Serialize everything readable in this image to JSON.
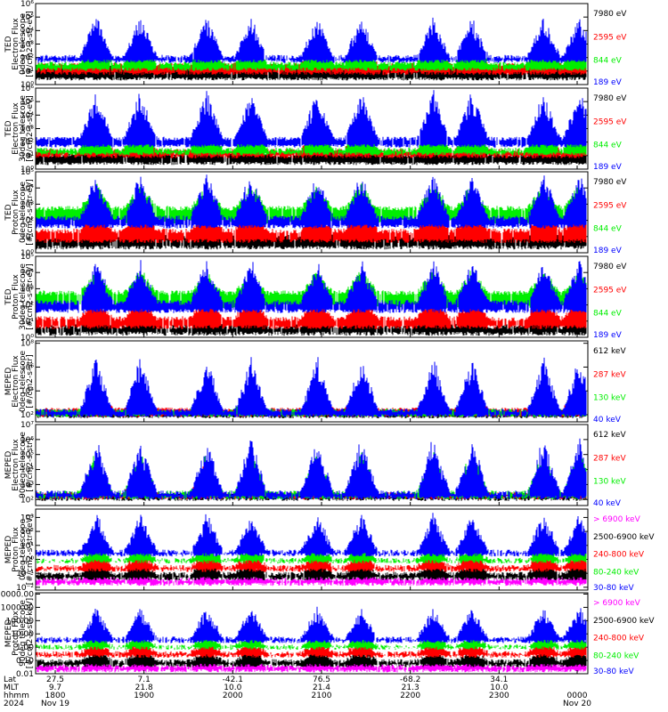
{
  "chart_data": [
    {
      "type": "line",
      "ylabel": [
        "TED",
        "Electron Flux",
        "0deg telescope",
        "[#/cm2-s-str-eV]"
      ],
      "ylog": true,
      "yticks": [
        "10⁰",
        "10¹",
        "10²",
        "10³",
        "10⁴",
        "10⁵",
        "10⁶"
      ],
      "series": [
        {
          "name": "7980 eV",
          "color": "#000000",
          "base": 1.1,
          "amp": 1.0,
          "floor": 0.3
        },
        {
          "name": "2595 eV",
          "color": "#ff0000",
          "base": 1.3,
          "amp": 1.6,
          "floor": 0.7
        },
        {
          "name": "844 eV",
          "color": "#00ee00",
          "base": 1.4,
          "amp": 2.0,
          "floor": 1.0
        },
        {
          "name": "189 eV",
          "color": "#0000ff",
          "base": 1.9,
          "amp": 2.8,
          "floor": 1.6
        }
      ]
    },
    {
      "type": "line",
      "ylabel": [
        "TED",
        "Electron Flux",
        "30deg telescope",
        "[#/cm2-s-str-eV]"
      ],
      "ylog": true,
      "yticks": [
        "10⁰",
        "10¹",
        "10²",
        "10³",
        "10⁴",
        "10⁵",
        "10⁶"
      ],
      "series": [
        {
          "name": "7980 eV",
          "color": "#000000",
          "base": 0.9,
          "amp": 1.5,
          "floor": 0.3
        },
        {
          "name": "2595 eV",
          "color": "#ff0000",
          "base": 1.2,
          "amp": 2.2,
          "floor": 0.8
        },
        {
          "name": "844 eV",
          "color": "#00ee00",
          "base": 1.3,
          "amp": 2.6,
          "floor": 1.0
        },
        {
          "name": "189 eV",
          "color": "#0000ff",
          "base": 2.1,
          "amp": 3.3,
          "floor": 1.6
        }
      ]
    },
    {
      "type": "line",
      "ylabel": [
        "TED",
        "Proton Flux",
        "0deg telescope",
        "[#/cm2-s-str-eV]"
      ],
      "ylog": true,
      "yticks": [
        "10⁰",
        "10¹",
        "10²",
        "10³",
        "10⁴",
        "10⁵"
      ],
      "series": [
        {
          "name": "7980 eV",
          "color": "#000000",
          "base": 0.8,
          "amp": 1.2,
          "floor": 0.2
        },
        {
          "name": "2595 eV",
          "color": "#ff0000",
          "base": 1.2,
          "amp": 1.6,
          "floor": 0.6
        },
        {
          "name": "844 eV",
          "color": "#00ee00",
          "base": 2.6,
          "amp": 1.4,
          "floor": 1.8
        },
        {
          "name": "189 eV",
          "color": "#0000ff",
          "base": 2.0,
          "amp": 2.6,
          "floor": 1.5
        }
      ]
    },
    {
      "type": "line",
      "ylabel": [
        "TED",
        "Proton Flux",
        "30deg telescope",
        "[#/cm2-s-str-eV]"
      ],
      "ylog": true,
      "yticks": [
        "10⁰",
        "10¹",
        "10²",
        "10³",
        "10⁴",
        "10⁵"
      ],
      "series": [
        {
          "name": "7980 eV",
          "color": "#000000",
          "base": 0.5,
          "amp": 1.0,
          "floor": 0.1
        },
        {
          "name": "2595 eV",
          "color": "#ff0000",
          "base": 1.0,
          "amp": 1.5,
          "floor": 0.5
        },
        {
          "name": "844 eV",
          "color": "#00ee00",
          "base": 2.6,
          "amp": 1.3,
          "floor": 1.8
        },
        {
          "name": "189 eV",
          "color": "#0000ff",
          "base": 2.0,
          "amp": 2.5,
          "floor": 1.5
        }
      ]
    },
    {
      "type": "line",
      "ylabel": [
        "MEPED",
        "Electron Flux",
        "0deg telescope",
        "[#/cm2-s-str]"
      ],
      "ylog": true,
      "yticks": [
        "10²",
        "10⁴",
        "10⁶",
        "10⁸"
      ],
      "ytick_vals": [
        2,
        4,
        6,
        8
      ],
      "ymin": 1.4,
      "ymax": 8.2,
      "series": [
        {
          "name": "612 keV",
          "color": "#000000",
          "base": 2.2,
          "amp": 1.6,
          "floor": 1.7
        },
        {
          "name": "287 keV",
          "color": "#ff0000",
          "base": 2.3,
          "amp": 2.0,
          "floor": 1.8
        },
        {
          "name": "130 keV",
          "color": "#00ee00",
          "base": 2.2,
          "amp": 2.4,
          "floor": 1.8
        },
        {
          "name": "40 keV",
          "color": "#0000ff",
          "base": 2.2,
          "amp": 4.2,
          "floor": 1.8
        }
      ]
    },
    {
      "type": "line",
      "ylabel": [
        "MEPED",
        "Electron Flux",
        "90deg telescope",
        "[#/cm2-s-str]"
      ],
      "ylog": true,
      "yticks": [
        "10²",
        "10³",
        "10⁴",
        "10⁵",
        "10⁶",
        "10⁷"
      ],
      "ytick_vals": [
        2,
        3,
        4,
        5,
        6,
        7
      ],
      "ymin": 1.6,
      "ymax": 7.0,
      "series": [
        {
          "name": "612 keV",
          "color": "#000000",
          "base": 2.1,
          "amp": 1.4,
          "floor": 1.9
        },
        {
          "name": "287 keV",
          "color": "#ff0000",
          "base": 2.2,
          "amp": 2.2,
          "floor": 2.0
        },
        {
          "name": "130 keV",
          "color": "#00ee00",
          "base": 2.3,
          "amp": 2.6,
          "floor": 2.0
        },
        {
          "name": "40 keV",
          "color": "#0000ff",
          "base": 2.3,
          "amp": 3.4,
          "floor": 2.0
        }
      ]
    },
    {
      "type": "line",
      "ylabel": [
        "MEPED",
        "Proton Flux",
        "0deg telescope",
        "[#/cm2-s-str-keV]"
      ],
      "ylog": true,
      "yticks": [
        "10⁻²",
        "10⁻¹",
        "10⁰",
        "10¹",
        "10²",
        "10³"
      ],
      "ytick_vals": [
        -2,
        -1,
        0,
        1,
        2,
        3
      ],
      "ymin": -2.2,
      "ymax": 3.6,
      "series": [
        {
          "name": "> 6900 keV",
          "color": "#ff00ff",
          "base": -1.6,
          "amp": 0.4,
          "floor": -1.9
        },
        {
          "name": "2500-6900 keV",
          "color": "#000000",
          "base": -1.2,
          "amp": 1.0,
          "floor": -1.5
        },
        {
          "name": "240-800 keV",
          "color": "#ff0000",
          "base": -0.7,
          "amp": 1.2,
          "floor": -0.9
        },
        {
          "name": "80-240 keV",
          "color": "#00ee00",
          "base": -0.2,
          "amp": 1.2,
          "floor": -0.3
        },
        {
          "name": "30-80 keV",
          "color": "#0000ff",
          "base": 0.4,
          "amp": 2.6,
          "floor": 0.2
        }
      ]
    },
    {
      "type": "line",
      "ylabel": [
        "MEPED",
        "Proton Flux",
        "90deg telescope",
        "[#/cm2-s-str-keV]"
      ],
      "ylog": true,
      "yticks": [
        "0.01",
        "0.10",
        "1.00",
        "10.00",
        "100.00",
        "1000.00",
        "10000.00"
      ],
      "ytick_vals": [
        -2,
        -1,
        0,
        1,
        2,
        3,
        4
      ],
      "ymin": -2.0,
      "ymax": 4.1,
      "series": [
        {
          "name": "> 6900 keV",
          "color": "#ff00ff",
          "base": -1.6,
          "amp": 0.5,
          "floor": -1.9
        },
        {
          "name": "2500-6900 keV",
          "color": "#000000",
          "base": -1.2,
          "amp": 0.9,
          "floor": -1.5
        },
        {
          "name": "240-800 keV",
          "color": "#ff0000",
          "base": -0.6,
          "amp": 1.0,
          "floor": -0.8
        },
        {
          "name": "80-240 keV",
          "color": "#00ee00",
          "base": -0.1,
          "amp": 1.1,
          "floor": -0.2
        },
        {
          "name": "30-80 keV",
          "color": "#0000ff",
          "base": 0.5,
          "amp": 2.2,
          "floor": 0.3
        }
      ]
    }
  ],
  "x_axis": {
    "row_labels": [
      "Lat",
      "MLT",
      "hhmm",
      "2024"
    ],
    "ticks": [
      {
        "lat": "27.5",
        "mlt": "9.7",
        "hhmm": "1800",
        "date": "Nov 19"
      },
      {
        "lat": "7.1",
        "mlt": "21.8",
        "hhmm": "1900",
        "date": ""
      },
      {
        "lat": "-42.1",
        "mlt": "10.0",
        "hhmm": "2000",
        "date": ""
      },
      {
        "lat": "76.5",
        "mlt": "21.4",
        "hhmm": "2100",
        "date": ""
      },
      {
        "lat": "-68.2",
        "mlt": "21.3",
        "hhmm": "2200",
        "date": ""
      },
      {
        "lat": "34.1",
        "mlt": "10.0",
        "hhmm": "2300",
        "date": ""
      },
      {
        "lat": "",
        "mlt": "",
        "hhmm": "0000",
        "date": "Nov 20"
      }
    ]
  },
  "pass_centers": [
    0.11,
    0.19,
    0.31,
    0.39,
    0.51,
    0.59,
    0.72,
    0.79,
    0.92,
    0.985
  ]
}
